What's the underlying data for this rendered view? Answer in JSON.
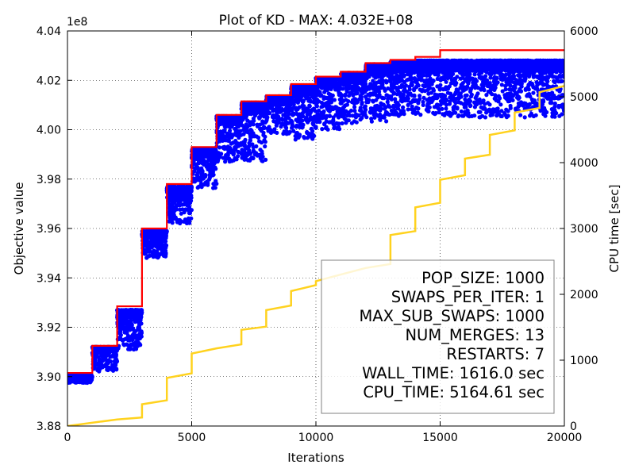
{
  "chart_data": {
    "type": "scatter",
    "title": "Plot of KD - MAX: 4.032E+08",
    "xlabel": "Iterations",
    "ylabel": "Objective value",
    "y2label": "CPU time [sec]",
    "y_offset_label": "1e8",
    "xlim": [
      0,
      20000
    ],
    "ylim": [
      3.88,
      4.04
    ],
    "y2lim": [
      0,
      6000
    ],
    "x_ticks": [
      0,
      5000,
      10000,
      15000,
      20000
    ],
    "x_tick_labels": [
      "0",
      "5000",
      "10000",
      "15000",
      "20000"
    ],
    "y_ticks": [
      3.88,
      3.9,
      3.92,
      3.94,
      3.96,
      3.98,
      4.0,
      4.02,
      4.04
    ],
    "y_tick_labels": [
      "3.88",
      "3.90",
      "3.92",
      "3.94",
      "3.96",
      "3.98",
      "4.00",
      "4.02",
      "4.04"
    ],
    "y2_ticks": [
      0,
      1000,
      2000,
      3000,
      4000,
      5000,
      6000
    ],
    "y2_tick_labels": [
      "0",
      "1000",
      "2000",
      "3000",
      "4000",
      "5000",
      "6000"
    ],
    "grid": true,
    "colors": {
      "points": "#0000ff",
      "best": "#ff0000",
      "cpu": "#ffd21e"
    },
    "best_steps": [
      [
        0,
        3.9015
      ],
      [
        1000,
        3.9125
      ],
      [
        2000,
        3.9285
      ],
      [
        3000,
        3.96
      ],
      [
        4000,
        3.978
      ],
      [
        5000,
        3.993
      ],
      [
        6000,
        4.006
      ],
      [
        7000,
        4.0115
      ],
      [
        8000,
        4.014
      ],
      [
        9000,
        4.0185
      ],
      [
        10000,
        4.0215
      ],
      [
        11000,
        4.0235
      ],
      [
        12000,
        4.027
      ],
      [
        13000,
        4.0283
      ],
      [
        14000,
        4.0295
      ],
      [
        15000,
        4.0322
      ],
      [
        20000,
        4.0322
      ]
    ],
    "point_bands": [
      {
        "x0": 0,
        "x1": 1000,
        "top": 3.9005,
        "bottom": 3.8975
      },
      {
        "x0": 1000,
        "x1": 2000,
        "top": 3.912,
        "bottom": 3.902
      },
      {
        "x0": 2000,
        "x1": 3000,
        "top": 3.927,
        "bottom": 3.911
      },
      {
        "x0": 3000,
        "x1": 4000,
        "top": 3.959,
        "bottom": 3.948
      },
      {
        "x0": 4000,
        "x1": 5000,
        "top": 3.977,
        "bottom": 3.962
      },
      {
        "x0": 5000,
        "x1": 6000,
        "top": 3.992,
        "bottom": 3.976
      },
      {
        "x0": 6000,
        "x1": 7000,
        "top": 4.0055,
        "bottom": 3.987
      },
      {
        "x0": 7000,
        "x1": 8000,
        "top": 4.011,
        "bottom": 3.987
      },
      {
        "x0": 8000,
        "x1": 9000,
        "top": 4.0135,
        "bottom": 3.998
      },
      {
        "x0": 9000,
        "x1": 10000,
        "top": 4.018,
        "bottom": 3.996
      },
      {
        "x0": 10000,
        "x1": 11000,
        "top": 4.021,
        "bottom": 4.0
      },
      {
        "x0": 11000,
        "x1": 12000,
        "top": 4.023,
        "bottom": 4.002
      },
      {
        "x0": 12000,
        "x1": 13000,
        "top": 4.0265,
        "bottom": 4.003
      },
      {
        "x0": 13000,
        "x1": 14000,
        "top": 4.0275,
        "bottom": 4.005
      },
      {
        "x0": 14000,
        "x1": 15000,
        "top": 4.028,
        "bottom": 4.006
      },
      {
        "x0": 15000,
        "x1": 20000,
        "top": 4.028,
        "bottom": 4.005
      }
    ],
    "cpu_time": [
      [
        0,
        0
      ],
      [
        2000,
        100
      ],
      [
        3000,
        130
      ],
      [
        3000,
        330
      ],
      [
        4000,
        390
      ],
      [
        4000,
        730
      ],
      [
        5000,
        800
      ],
      [
        5000,
        1100
      ],
      [
        6000,
        1180
      ],
      [
        7000,
        1240
      ],
      [
        7000,
        1460
      ],
      [
        8000,
        1510
      ],
      [
        8000,
        1760
      ],
      [
        9000,
        1830
      ],
      [
        9000,
        2050
      ],
      [
        10000,
        2140
      ],
      [
        10000,
        2200
      ],
      [
        11000,
        2300
      ],
      [
        12000,
        2400
      ],
      [
        13000,
        2460
      ],
      [
        13000,
        2900
      ],
      [
        14000,
        2960
      ],
      [
        14000,
        3320
      ],
      [
        15000,
        3390
      ],
      [
        15000,
        3740
      ],
      [
        16000,
        3810
      ],
      [
        16000,
        4060
      ],
      [
        17000,
        4120
      ],
      [
        17000,
        4420
      ],
      [
        18000,
        4490
      ],
      [
        18000,
        4760
      ],
      [
        19000,
        4830
      ],
      [
        19000,
        5070
      ],
      [
        20000,
        5165
      ]
    ],
    "annotations": [
      "POP_SIZE: 1000",
      "SWAPS_PER_ITER: 1",
      "MAX_SUB_SWAPS: 1000",
      "NUM_MERGES: 13",
      "RESTARTS: 7",
      "WALL_TIME: 1616.0 sec",
      "CPU_TIME: 5164.61 sec"
    ]
  }
}
